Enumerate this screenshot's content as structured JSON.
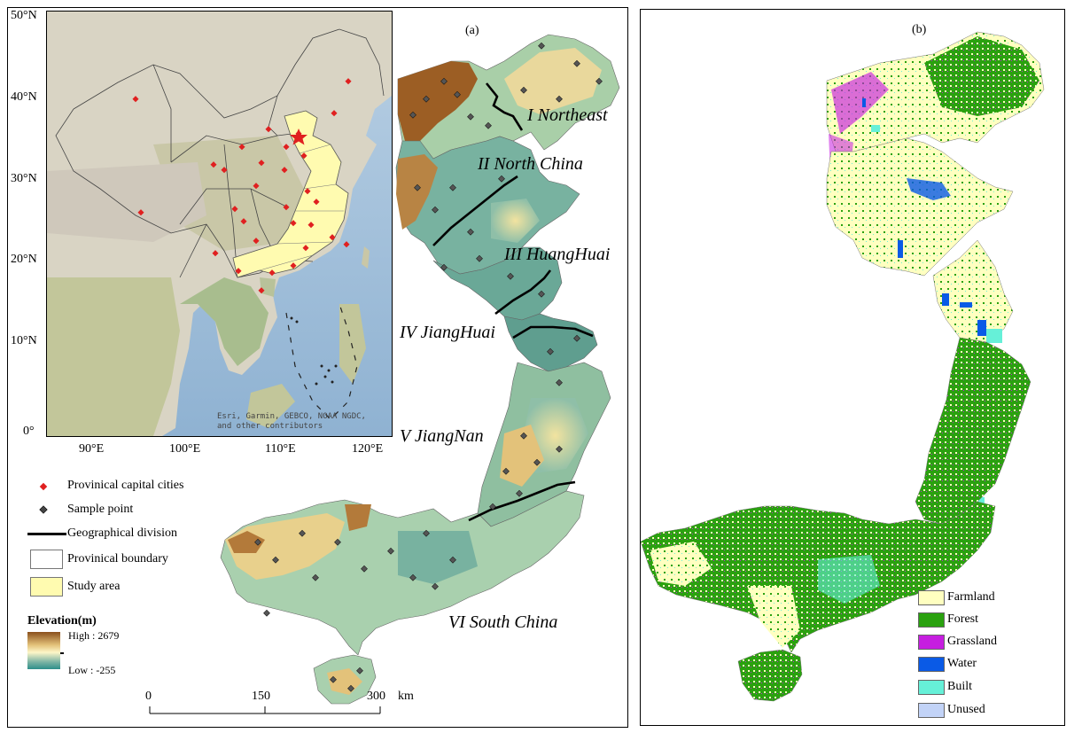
{
  "panel_a": {
    "label": "(a)",
    "inset": {
      "lat_ticks": [
        "50°N",
        "40°N",
        "30°N",
        "20°N",
        "10°N",
        "0°"
      ],
      "lon_ticks": [
        "90°E",
        "100°E",
        "110°E",
        "120°E"
      ],
      "attribution_line1": "Esri, Garmin, GEBCO, NOAA NGDC,",
      "attribution_line2": "and other contributors"
    },
    "regions": [
      {
        "label": "I  Northeast"
      },
      {
        "label": "II  North China"
      },
      {
        "label": "III  HuangHuai"
      },
      {
        "label": "IV  JiangHuai"
      },
      {
        "label": "V  JiangNan"
      },
      {
        "label": "VI  South China"
      }
    ],
    "legend": {
      "capital": "Provinical capital cities",
      "sample": "Sample point",
      "division": "Geographical division",
      "boundary": "Provinical boundary",
      "study_area": "Study area",
      "elevation_title": "Elevation(m)",
      "high": "High : 2679",
      "low": "Low : -255"
    },
    "scalebar": {
      "t0": "0",
      "t1": "150",
      "t2": "300",
      "unit": "km"
    }
  },
  "panel_b": {
    "label": "(b)",
    "legend": [
      {
        "label": "Farmland",
        "color": "#ffffc0"
      },
      {
        "label": "Forest",
        "color": "#2aa10f"
      },
      {
        "label": "Grassland",
        "color": "#c61ee0"
      },
      {
        "label": "Water",
        "color": "#0a5ae6"
      },
      {
        "label": "Built",
        "color": "#66f0d8"
      },
      {
        "label": "Unused",
        "color": "#c2d3f7"
      }
    ]
  },
  "colors": {
    "study_area": "#fffbb0",
    "capital": "#e02020",
    "elev_high": "#8a4f1c",
    "elev_low": "#2d8f8a"
  }
}
